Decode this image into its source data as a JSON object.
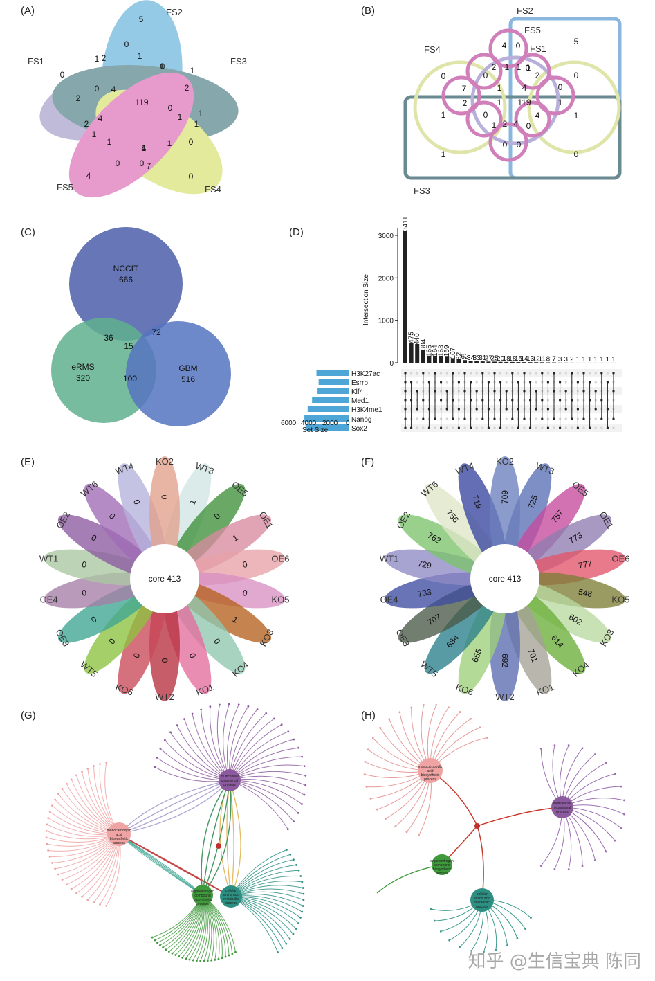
{
  "panels": {
    "A": {
      "label": "(A)",
      "sets": [
        {
          "name": "FS1",
          "color": "#8f84bd"
        },
        {
          "name": "FS2",
          "color": "#3d9fd3"
        },
        {
          "name": "FS3",
          "color": "#25606a"
        },
        {
          "name": "FS4",
          "color": "#cfd94c"
        },
        {
          "name": "FS5",
          "color": "#d54aa4"
        }
      ],
      "numbers": [
        "5",
        "0",
        "2",
        "1",
        "0",
        "1",
        "0",
        "1",
        "2",
        "0",
        "4",
        "1",
        "119",
        "2",
        "1",
        "1",
        "1",
        "1",
        "4",
        "2",
        "1",
        "1",
        "0",
        "0",
        "4",
        "1",
        "0",
        "0",
        "7",
        "4",
        "0"
      ]
    },
    "B": {
      "label": "(B)",
      "sets": [
        {
          "name": "FS1",
          "color": "#9f91c7"
        },
        {
          "name": "FS2",
          "color": "#5e9fd2"
        },
        {
          "name": "FS3",
          "color": "#3d6a78"
        },
        {
          "name": "FS4",
          "color": "#cfd88a"
        },
        {
          "name": "FS5",
          "color": "#cc5ea8"
        }
      ],
      "numbers": [
        "4",
        "0",
        "5",
        "0",
        "2",
        "1",
        "1",
        "0",
        "2",
        "0",
        "7",
        "1",
        "4",
        "0",
        "2",
        "1",
        "119",
        "1",
        "1",
        "0",
        "4",
        "1",
        "1",
        "2",
        "4",
        "0",
        "0",
        "0",
        "1",
        "0",
        "0",
        "1"
      ]
    },
    "C": {
      "label": "(C)",
      "circles": [
        {
          "name": "NCCIT",
          "value": "666",
          "color": "#4b5ea9"
        },
        {
          "name": "eRMS",
          "value": "320",
          "color": "#5fb08e"
        },
        {
          "name": "GBM",
          "value": "516",
          "color": "#5574bf"
        }
      ],
      "overlaps": {
        "nccit_erms": "36",
        "nccit_gbm": "72",
        "erms_gbm": "100",
        "all": "15"
      }
    },
    "D": {
      "label": "(D)",
      "ylabel": "Intersection Size",
      "yticks": [
        "0",
        "1000",
        "2000",
        "3000"
      ],
      "set_size_label": "Set Size",
      "set_size_ticks": [
        "6000",
        "4000",
        "2000",
        "0"
      ],
      "sets": [
        "H3K27ac",
        "Esrrb",
        "Klf4",
        "Med1",
        "H3K4me1",
        "Nanog",
        "Sox2"
      ],
      "set_sizes": [
        3000,
        2800,
        2900,
        3400,
        3800,
        4100,
        4000
      ]
    },
    "E": {
      "label": "(E)",
      "core": "core 413",
      "petals": [
        {
          "name": "WT3",
          "value": "1",
          "color": "#cfe6e4"
        },
        {
          "name": "OE5",
          "value": "0",
          "color": "#3f8f3a"
        },
        {
          "name": "OE1",
          "value": "1",
          "color": "#d98ba0"
        },
        {
          "name": "OE6",
          "value": "0",
          "color": "#e7a2a8"
        },
        {
          "name": "KO5",
          "value": "0",
          "color": "#d88fc3"
        },
        {
          "name": "KO3",
          "value": "1",
          "color": "#b5621d"
        },
        {
          "name": "KO4",
          "value": "0",
          "color": "#8fc7b0"
        },
        {
          "name": "KO1",
          "value": "0",
          "color": "#e36d9d"
        },
        {
          "name": "WT2",
          "value": "0",
          "color": "#b7303e"
        },
        {
          "name": "KO6",
          "value": "0",
          "color": "#c94958"
        },
        {
          "name": "WT5",
          "value": "0",
          "color": "#8cc23e"
        },
        {
          "name": "OE3",
          "value": "0",
          "color": "#3fa594"
        },
        {
          "name": "OE4",
          "value": "0",
          "color": "#a57ea6"
        },
        {
          "name": "WT1",
          "value": "0",
          "color": "#a9c7a1"
        },
        {
          "name": "OE2",
          "value": "0",
          "color": "#8c5aa0"
        },
        {
          "name": "WT6",
          "value": "0",
          "color": "#a06ab5"
        },
        {
          "name": "WT4",
          "value": "0",
          "color": "#b5b2dc"
        },
        {
          "name": "KO2",
          "value": "0",
          "color": "#e2a08c"
        }
      ]
    },
    "F": {
      "label": "(F)",
      "core": "core 413",
      "petals": [
        {
          "name": "WT3",
          "value": "725",
          "color": "#5a6fb5"
        },
        {
          "name": "OE5",
          "value": "757",
          "color": "#c54a9d"
        },
        {
          "name": "OE1",
          "value": "773",
          "color": "#8e7caf"
        },
        {
          "name": "OE6",
          "value": "777",
          "color": "#e3546a"
        },
        {
          "name": "KO5",
          "value": "548",
          "color": "#7d7d37"
        },
        {
          "name": "KO3",
          "value": "602",
          "color": "#b8d8a0"
        },
        {
          "name": "KO4",
          "value": "614",
          "color": "#6aae3a"
        },
        {
          "name": "KO1",
          "value": "701",
          "color": "#a5a196"
        },
        {
          "name": "WT2",
          "value": "692",
          "color": "#5a6cb0"
        },
        {
          "name": "KO6",
          "value": "655",
          "color": "#9fd07a"
        },
        {
          "name": "WT5",
          "value": "684",
          "color": "#2a7f8c"
        },
        {
          "name": "OE3",
          "value": "707",
          "color": "#4a5a47"
        },
        {
          "name": "OE4",
          "value": "733",
          "color": "#3e4da0"
        },
        {
          "name": "WT1",
          "value": "729",
          "color": "#8f8ac4"
        },
        {
          "name": "OE2",
          "value": "762",
          "color": "#7bc36b"
        },
        {
          "name": "WT6",
          "value": "756",
          "color": "#dfe5c6"
        },
        {
          "name": "WT4",
          "value": "719",
          "color": "#3745a0"
        },
        {
          "name": "KO2",
          "value": "709",
          "color": "#6a7fbd"
        }
      ]
    },
    "G": {
      "label": "(G)",
      "nodes": [
        {
          "name": "multicellular organismal process",
          "color": "#8c5a9e"
        },
        {
          "name": "monocarboxylic acid biosynthetic process",
          "color": "#f0a3a3"
        },
        {
          "name": "organonitrogen compound biosynthetic process",
          "color": "#3f9a3c"
        },
        {
          "name": "cellular amino acid metabolic process",
          "color": "#2c8f82"
        }
      ]
    },
    "H": {
      "label": "(H)",
      "nodes": [
        {
          "name": "monocarboxylic acid biosynthetic process",
          "color": "#f0a3a3"
        },
        {
          "name": "multicellular organismal process",
          "color": "#8c5a9e"
        },
        {
          "name": "organonitrogen compound biosynthetic process",
          "color": "#3f9a3c"
        },
        {
          "name": "cellular amino acid metabolic process",
          "color": "#2c8f82"
        }
      ]
    }
  },
  "watermark": "知乎 @生信宝典 陈同"
}
